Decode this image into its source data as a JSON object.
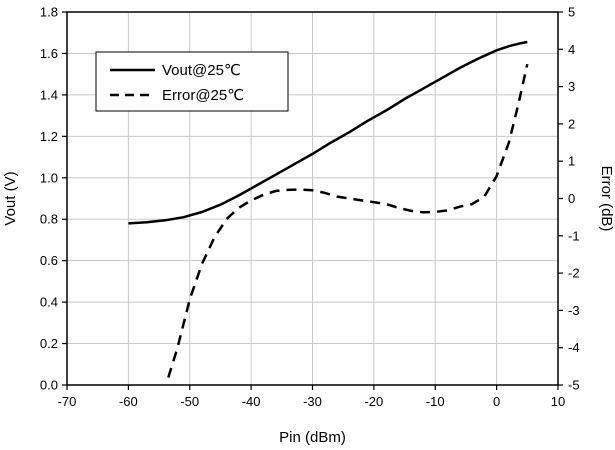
{
  "chart_data": {
    "type": "line",
    "x_axis": {
      "label": "Pin (dBm)",
      "range": [
        -70,
        10
      ],
      "ticks": [
        -70,
        -60,
        -50,
        -40,
        -30,
        -20,
        -10,
        0,
        10
      ],
      "tick_labels": [
        "-70",
        "-60",
        "-50",
        "-40",
        "-30",
        "-20",
        "-10",
        "0",
        "10"
      ]
    },
    "y_left": {
      "label": "Vout (V)",
      "range": [
        0,
        1.8
      ],
      "ticks": [
        0,
        0.2,
        0.4,
        0.6,
        0.8,
        1.0,
        1.2,
        1.4,
        1.6,
        1.8
      ],
      "tick_labels": [
        "0.0",
        "0.2",
        "0.4",
        "0.6",
        "0.8",
        "1.0",
        "1.2",
        "1.4",
        "1.6",
        "1.8"
      ]
    },
    "y_right": {
      "label": "Error (dB)",
      "range": [
        -5,
        5
      ],
      "ticks": [
        -5,
        -4,
        -3,
        -2,
        -1,
        0,
        1,
        2,
        3,
        4,
        5
      ],
      "tick_labels": [
        "-5",
        "-4",
        "-3",
        "-2",
        "-1",
        "0",
        "1",
        "2",
        "3",
        "4",
        "5"
      ]
    },
    "grid": true,
    "legend": {
      "position": "top-left"
    },
    "series": [
      {
        "name": "Vout@25℃",
        "axis": "left",
        "style": "solid",
        "color": "#000000",
        "points": [
          [
            -60,
            0.78
          ],
          [
            -57,
            0.785
          ],
          [
            -54,
            0.795
          ],
          [
            -51,
            0.81
          ],
          [
            -48,
            0.835
          ],
          [
            -45,
            0.87
          ],
          [
            -42,
            0.915
          ],
          [
            -39,
            0.965
          ],
          [
            -36,
            1.015
          ],
          [
            -33,
            1.065
          ],
          [
            -30,
            1.115
          ],
          [
            -27,
            1.17
          ],
          [
            -24,
            1.22
          ],
          [
            -21,
            1.275
          ],
          [
            -18,
            1.325
          ],
          [
            -15,
            1.38
          ],
          [
            -12,
            1.43
          ],
          [
            -9,
            1.48
          ],
          [
            -6,
            1.53
          ],
          [
            -3,
            1.575
          ],
          [
            0,
            1.615
          ],
          [
            2,
            1.635
          ],
          [
            4,
            1.65
          ],
          [
            5,
            1.655
          ]
        ]
      },
      {
        "name": "Error@25℃",
        "axis": "right",
        "style": "dashed",
        "color": "#000000",
        "points": [
          [
            -53.5,
            -4.8
          ],
          [
            -52,
            -4.0
          ],
          [
            -50,
            -2.7
          ],
          [
            -48,
            -1.75
          ],
          [
            -46,
            -1.05
          ],
          [
            -44,
            -0.55
          ],
          [
            -42,
            -0.25
          ],
          [
            -40,
            -0.05
          ],
          [
            -38,
            0.1
          ],
          [
            -36,
            0.2
          ],
          [
            -34,
            0.23
          ],
          [
            -32,
            0.24
          ],
          [
            -30,
            0.22
          ],
          [
            -28,
            0.15
          ],
          [
            -26,
            0.05
          ],
          [
            -24,
            0.0
          ],
          [
            -22,
            -0.05
          ],
          [
            -20,
            -0.1
          ],
          [
            -18,
            -0.15
          ],
          [
            -16,
            -0.25
          ],
          [
            -14,
            -0.33
          ],
          [
            -12,
            -0.37
          ],
          [
            -10,
            -0.36
          ],
          [
            -8,
            -0.32
          ],
          [
            -6,
            -0.22
          ],
          [
            -4,
            -0.15
          ],
          [
            -2,
            0.05
          ],
          [
            0,
            0.6
          ],
          [
            2,
            1.5
          ],
          [
            3.5,
            2.5
          ],
          [
            5,
            3.6
          ]
        ]
      }
    ]
  }
}
